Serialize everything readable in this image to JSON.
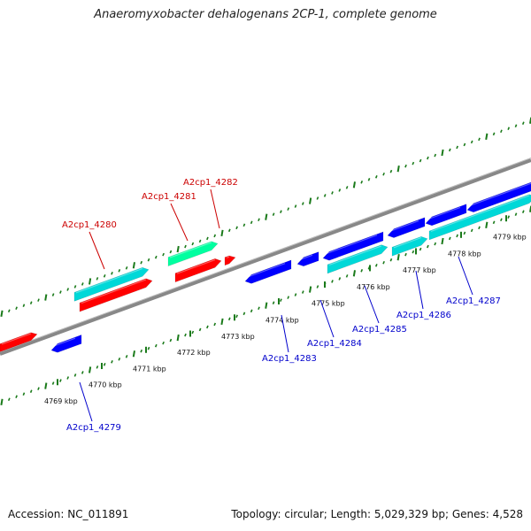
{
  "title": "Anaeromyxobacter dehalogenans 2CP-1, complete genome",
  "footer": {
    "accession_text": "Accession: NC_011891",
    "summary_text": "Topology: circular; Length: 5,029,329 bp; Genes: 4,528"
  },
  "colors": {
    "forward_cds": "#ff0000",
    "reverse_cds": "#0000ff",
    "forward_rna": "#00d8d8",
    "reverse_rna": "#00ffa0",
    "backbone": "#888888",
    "ticks": "#1a7a1a",
    "forward_label": "#cc0000",
    "reverse_label": "#0000cc"
  },
  "scale_ticks": [
    {
      "label": "4769 kbp",
      "pos": 4769
    },
    {
      "label": "4770 kbp",
      "pos": 4770
    },
    {
      "label": "4771 kbp",
      "pos": 4771
    },
    {
      "label": "4772 kbp",
      "pos": 4772
    },
    {
      "label": "4773 kbp",
      "pos": 4773
    },
    {
      "label": "4774 kbp",
      "pos": 4774
    },
    {
      "label": "4775 kbp",
      "pos": 4775
    },
    {
      "label": "4776 kbp",
      "pos": 4776
    },
    {
      "label": "4777 kbp",
      "pos": 4777
    },
    {
      "label": "4778 kbp",
      "pos": 4778
    },
    {
      "label": "4779 kbp",
      "pos": 4779
    }
  ],
  "genes": [
    {
      "label": "A2cp1_4279",
      "strand": "reverse"
    },
    {
      "label": "A2cp1_4280",
      "strand": "forward"
    },
    {
      "label": "A2cp1_4281",
      "strand": "forward"
    },
    {
      "label": "A2cp1_4282",
      "strand": "forward"
    },
    {
      "label": "A2cp1_4283",
      "strand": "reverse"
    },
    {
      "label": "A2cp1_4284",
      "strand": "reverse"
    },
    {
      "label": "A2cp1_4285",
      "strand": "reverse"
    },
    {
      "label": "A2cp1_4286",
      "strand": "reverse"
    },
    {
      "label": "A2cp1_4287",
      "strand": "reverse"
    }
  ]
}
